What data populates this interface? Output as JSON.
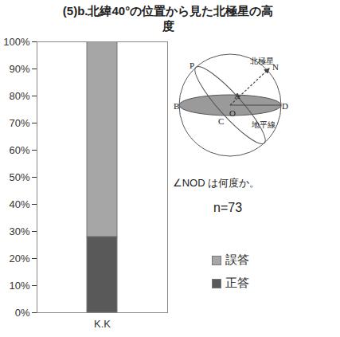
{
  "chart_data": {
    "type": "bar",
    "stacked": true,
    "title": "(5)b.北緯40°の位置から見た北極星の高度",
    "categories": [
      "K.K"
    ],
    "series": [
      {
        "name": "正答",
        "color": "#595959",
        "values": [
          28
        ]
      },
      {
        "name": "誤答",
        "color": "#a6a6a6",
        "values": [
          72
        ]
      }
    ],
    "ylim": [
      0,
      100
    ],
    "yticks": [
      {
        "value": 0,
        "label": "0%"
      },
      {
        "value": 10,
        "label": "10%"
      },
      {
        "value": 20,
        "label": "20%"
      },
      {
        "value": 30,
        "label": "30%"
      },
      {
        "value": 40,
        "label": "40%"
      },
      {
        "value": 50,
        "label": "50%"
      },
      {
        "value": 60,
        "label": "60%"
      },
      {
        "value": 70,
        "label": "70%"
      },
      {
        "value": 80,
        "label": "80%"
      },
      {
        "value": 90,
        "label": "90%"
      },
      {
        "value": 100,
        "label": "100%"
      }
    ],
    "grid": false,
    "legend": "right",
    "annotations": [
      "n=73"
    ],
    "inset_diagram": {
      "points": [
        "P",
        "N",
        "A",
        "B",
        "C",
        "O",
        "D"
      ],
      "star": "北極星",
      "horizon": "地平線",
      "caption": "∠NOD は何度か。"
    }
  }
}
